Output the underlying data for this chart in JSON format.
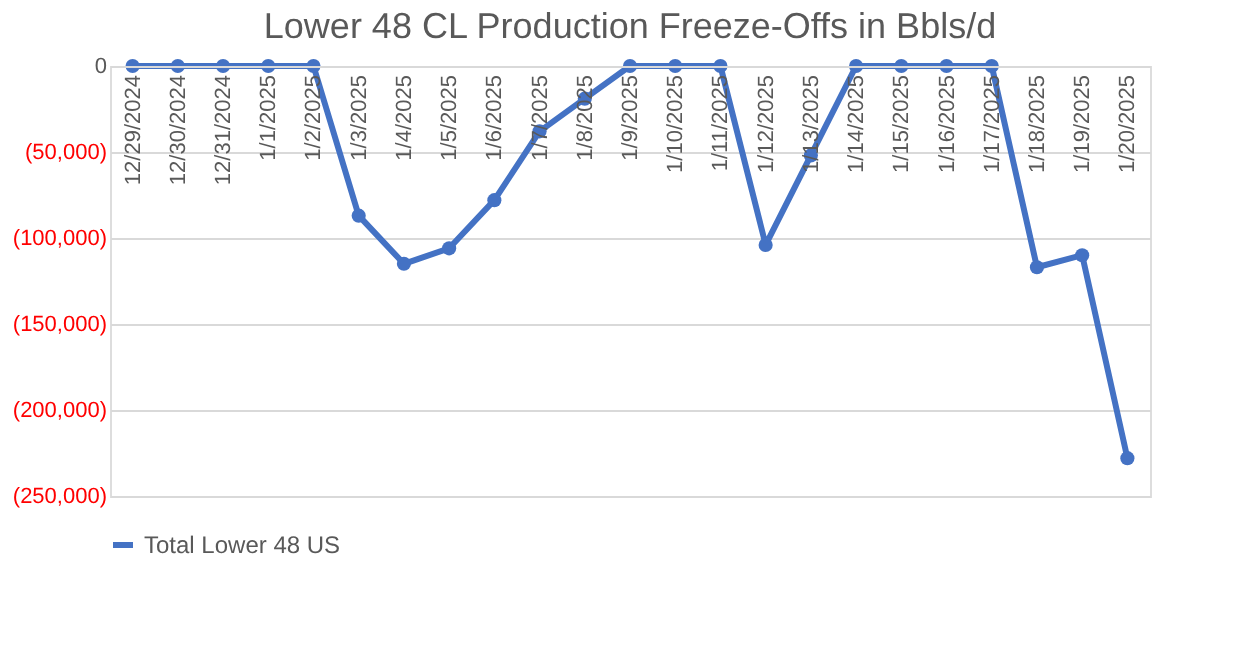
{
  "chart_data": {
    "type": "line",
    "title": "Lower 48 CL Production Freeze-Offs in Bbls/d",
    "categories": [
      "12/29/2024",
      "12/30/2024",
      "12/31/2024",
      "1/1/2025",
      "1/2/2025",
      "1/3/2025",
      "1/4/2025",
      "1/5/2025",
      "1/6/2025",
      "1/7/2025",
      "1/8/2025",
      "1/9/2025",
      "1/10/2025",
      "1/11/2025",
      "1/12/2025",
      "1/13/2025",
      "1/14/2025",
      "1/15/2025",
      "1/16/2025",
      "1/17/2025",
      "1/18/2025",
      "1/19/2025",
      "1/20/2025"
    ],
    "series": [
      {
        "name": "Total Lower 48 US",
        "color": "#4472c4",
        "values": [
          0,
          0,
          0,
          0,
          0,
          -87000,
          -115000,
          -106000,
          -78000,
          -38000,
          -19000,
          0,
          0,
          0,
          -104000,
          -52000,
          0,
          0,
          0,
          0,
          -117000,
          -110000,
          -228000
        ]
      }
    ],
    "ylim": [
      -250000,
      0
    ],
    "yticks": [
      {
        "value": -250000,
        "label": "(250,000)"
      },
      {
        "value": -200000,
        "label": "(200,000)"
      },
      {
        "value": -150000,
        "label": "(150,000)"
      },
      {
        "value": -100000,
        "label": "(100,000)"
      },
      {
        "value": -50000,
        "label": "(50,000)"
      },
      0
    ],
    "grid": "y",
    "legend": "bottom",
    "marker": "circle",
    "line_style": "solid"
  }
}
